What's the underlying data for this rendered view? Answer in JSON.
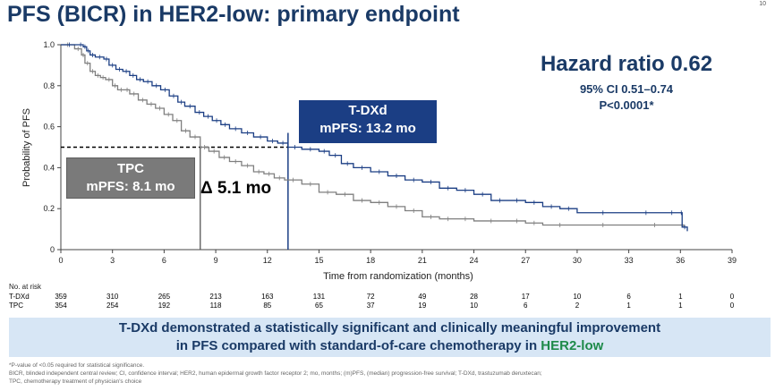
{
  "header": {
    "title": "PFS (BICR) in HER2-low: primary endpoint",
    "slide_number": "10"
  },
  "hazard": {
    "main": "Hazard ratio 0.62",
    "ci": "95% CI 0.51–0.74",
    "p": "P<0.0001*"
  },
  "annotations": {
    "tdxd_line1": "T-DXd",
    "tdxd_line2": "mPFS: 13.2 mo",
    "tpc_line1": "TPC",
    "tpc_line2": "mPFS: 8.1 mo",
    "delta": "Δ 5.1 mo"
  },
  "risk_table": {
    "title": "No. at risk",
    "rows": [
      {
        "label": "T-DXd",
        "values": [
          "359",
          "310",
          "265",
          "213",
          "163",
          "131",
          "72",
          "49",
          "28",
          "17",
          "10",
          "6",
          "1",
          "0"
        ]
      },
      {
        "label": "TPC",
        "values": [
          "354",
          "254",
          "192",
          "118",
          "85",
          "65",
          "37",
          "19",
          "10",
          "6",
          "2",
          "1",
          "1",
          "0"
        ]
      }
    ]
  },
  "banner": {
    "line1": "T-DXd demonstrated a statistically significant and clinically meaningful improvement",
    "line2_prefix": "in PFS compared with standard-of-care chemotherapy in ",
    "line2_highlight": "HER2-low"
  },
  "footnotes": [
    "*P-value of <0.05 required for statistical significance.",
    "BICR, blinded independent central review; CI, confidence interval; HER2, human epidermal growth factor receptor 2; mo, months; (m)PFS, (median) progression-free survival; T-DXd, trastuzumab deruxtecan;",
    "TPC, chemotherapy treatment of physician's choice"
  ],
  "chart_data": {
    "type": "line",
    "xlabel": "Time from randomization (months)",
    "ylabel": "Probability of PFS",
    "xlim": [
      0,
      39
    ],
    "ylim": [
      0,
      1.0
    ],
    "x_ticks": [
      0,
      3,
      6,
      9,
      12,
      15,
      18,
      21,
      24,
      27,
      30,
      33,
      36,
      39
    ],
    "y_ticks": [
      "0",
      "0.2",
      "0.4",
      "0.6",
      "0.8",
      "1.0"
    ],
    "y_tick_values": [
      0,
      0.2,
      0.4,
      0.6,
      0.8,
      1.0
    ],
    "median_reference": {
      "y": 0.5,
      "tdxd_x": 13.2,
      "tpc_x": 8.1
    },
    "colors": {
      "tdxd": "#1b3e84",
      "tpc": "#7f7f7f"
    },
    "series": [
      {
        "name": "T-DXd",
        "points": [
          [
            0,
            1.0
          ],
          [
            1.0,
            1.0
          ],
          [
            1.3,
            0.99
          ],
          [
            1.5,
            0.97
          ],
          [
            1.7,
            0.95
          ],
          [
            2.0,
            0.94
          ],
          [
            2.5,
            0.93
          ],
          [
            2.8,
            0.9
          ],
          [
            3.2,
            0.88
          ],
          [
            3.6,
            0.87
          ],
          [
            4.0,
            0.85
          ],
          [
            4.4,
            0.83
          ],
          [
            4.8,
            0.82
          ],
          [
            5.3,
            0.8
          ],
          [
            5.8,
            0.78
          ],
          [
            6.3,
            0.75
          ],
          [
            6.8,
            0.72
          ],
          [
            7.2,
            0.7
          ],
          [
            7.8,
            0.67
          ],
          [
            8.3,
            0.65
          ],
          [
            8.8,
            0.63
          ],
          [
            9.3,
            0.61
          ],
          [
            9.8,
            0.59
          ],
          [
            10.5,
            0.57
          ],
          [
            11.2,
            0.55
          ],
          [
            12.0,
            0.53
          ],
          [
            12.6,
            0.52
          ],
          [
            13.2,
            0.5
          ],
          [
            14.0,
            0.49
          ],
          [
            15.0,
            0.48
          ],
          [
            15.6,
            0.46
          ],
          [
            16.3,
            0.42
          ],
          [
            17.0,
            0.4
          ],
          [
            18.0,
            0.38
          ],
          [
            19.0,
            0.36
          ],
          [
            20.0,
            0.34
          ],
          [
            21.0,
            0.33
          ],
          [
            22.0,
            0.3
          ],
          [
            23.0,
            0.29
          ],
          [
            24.0,
            0.27
          ],
          [
            25.0,
            0.24
          ],
          [
            26.0,
            0.24
          ],
          [
            27.0,
            0.23
          ],
          [
            28.0,
            0.21
          ],
          [
            29.0,
            0.2
          ],
          [
            30.0,
            0.18
          ],
          [
            33.0,
            0.18
          ],
          [
            35.0,
            0.18
          ],
          [
            36.0,
            0.18
          ],
          [
            36.1,
            0.11
          ],
          [
            36.4,
            0.09
          ]
        ]
      },
      {
        "name": "TPC",
        "points": [
          [
            0,
            1.0
          ],
          [
            0.8,
            0.98
          ],
          [
            1.2,
            0.95
          ],
          [
            1.4,
            0.91
          ],
          [
            1.7,
            0.87
          ],
          [
            2.0,
            0.85
          ],
          [
            2.3,
            0.84
          ],
          [
            2.6,
            0.83
          ],
          [
            3.0,
            0.8
          ],
          [
            3.3,
            0.78
          ],
          [
            3.7,
            0.78
          ],
          [
            4.0,
            0.76
          ],
          [
            4.5,
            0.73
          ],
          [
            5.0,
            0.71
          ],
          [
            5.5,
            0.69
          ],
          [
            6.0,
            0.66
          ],
          [
            6.5,
            0.63
          ],
          [
            7.0,
            0.58
          ],
          [
            7.5,
            0.55
          ],
          [
            8.1,
            0.5
          ],
          [
            8.6,
            0.48
          ],
          [
            9.2,
            0.45
          ],
          [
            9.8,
            0.43
          ],
          [
            10.5,
            0.41
          ],
          [
            11.2,
            0.38
          ],
          [
            11.8,
            0.37
          ],
          [
            12.4,
            0.35
          ],
          [
            13.0,
            0.34
          ],
          [
            14.0,
            0.32
          ],
          [
            15.0,
            0.28
          ],
          [
            16.0,
            0.27
          ],
          [
            17.0,
            0.24
          ],
          [
            18.0,
            0.23
          ],
          [
            19.0,
            0.21
          ],
          [
            20.0,
            0.19
          ],
          [
            21.0,
            0.16
          ],
          [
            22.0,
            0.15
          ],
          [
            23.0,
            0.15
          ],
          [
            24.0,
            0.14
          ],
          [
            26.0,
            0.14
          ],
          [
            27.0,
            0.13
          ],
          [
            28.0,
            0.12
          ],
          [
            30.0,
            0.12
          ],
          [
            33.0,
            0.12
          ],
          [
            36.0,
            0.12
          ],
          [
            36.2,
            0.11
          ]
        ]
      }
    ]
  }
}
